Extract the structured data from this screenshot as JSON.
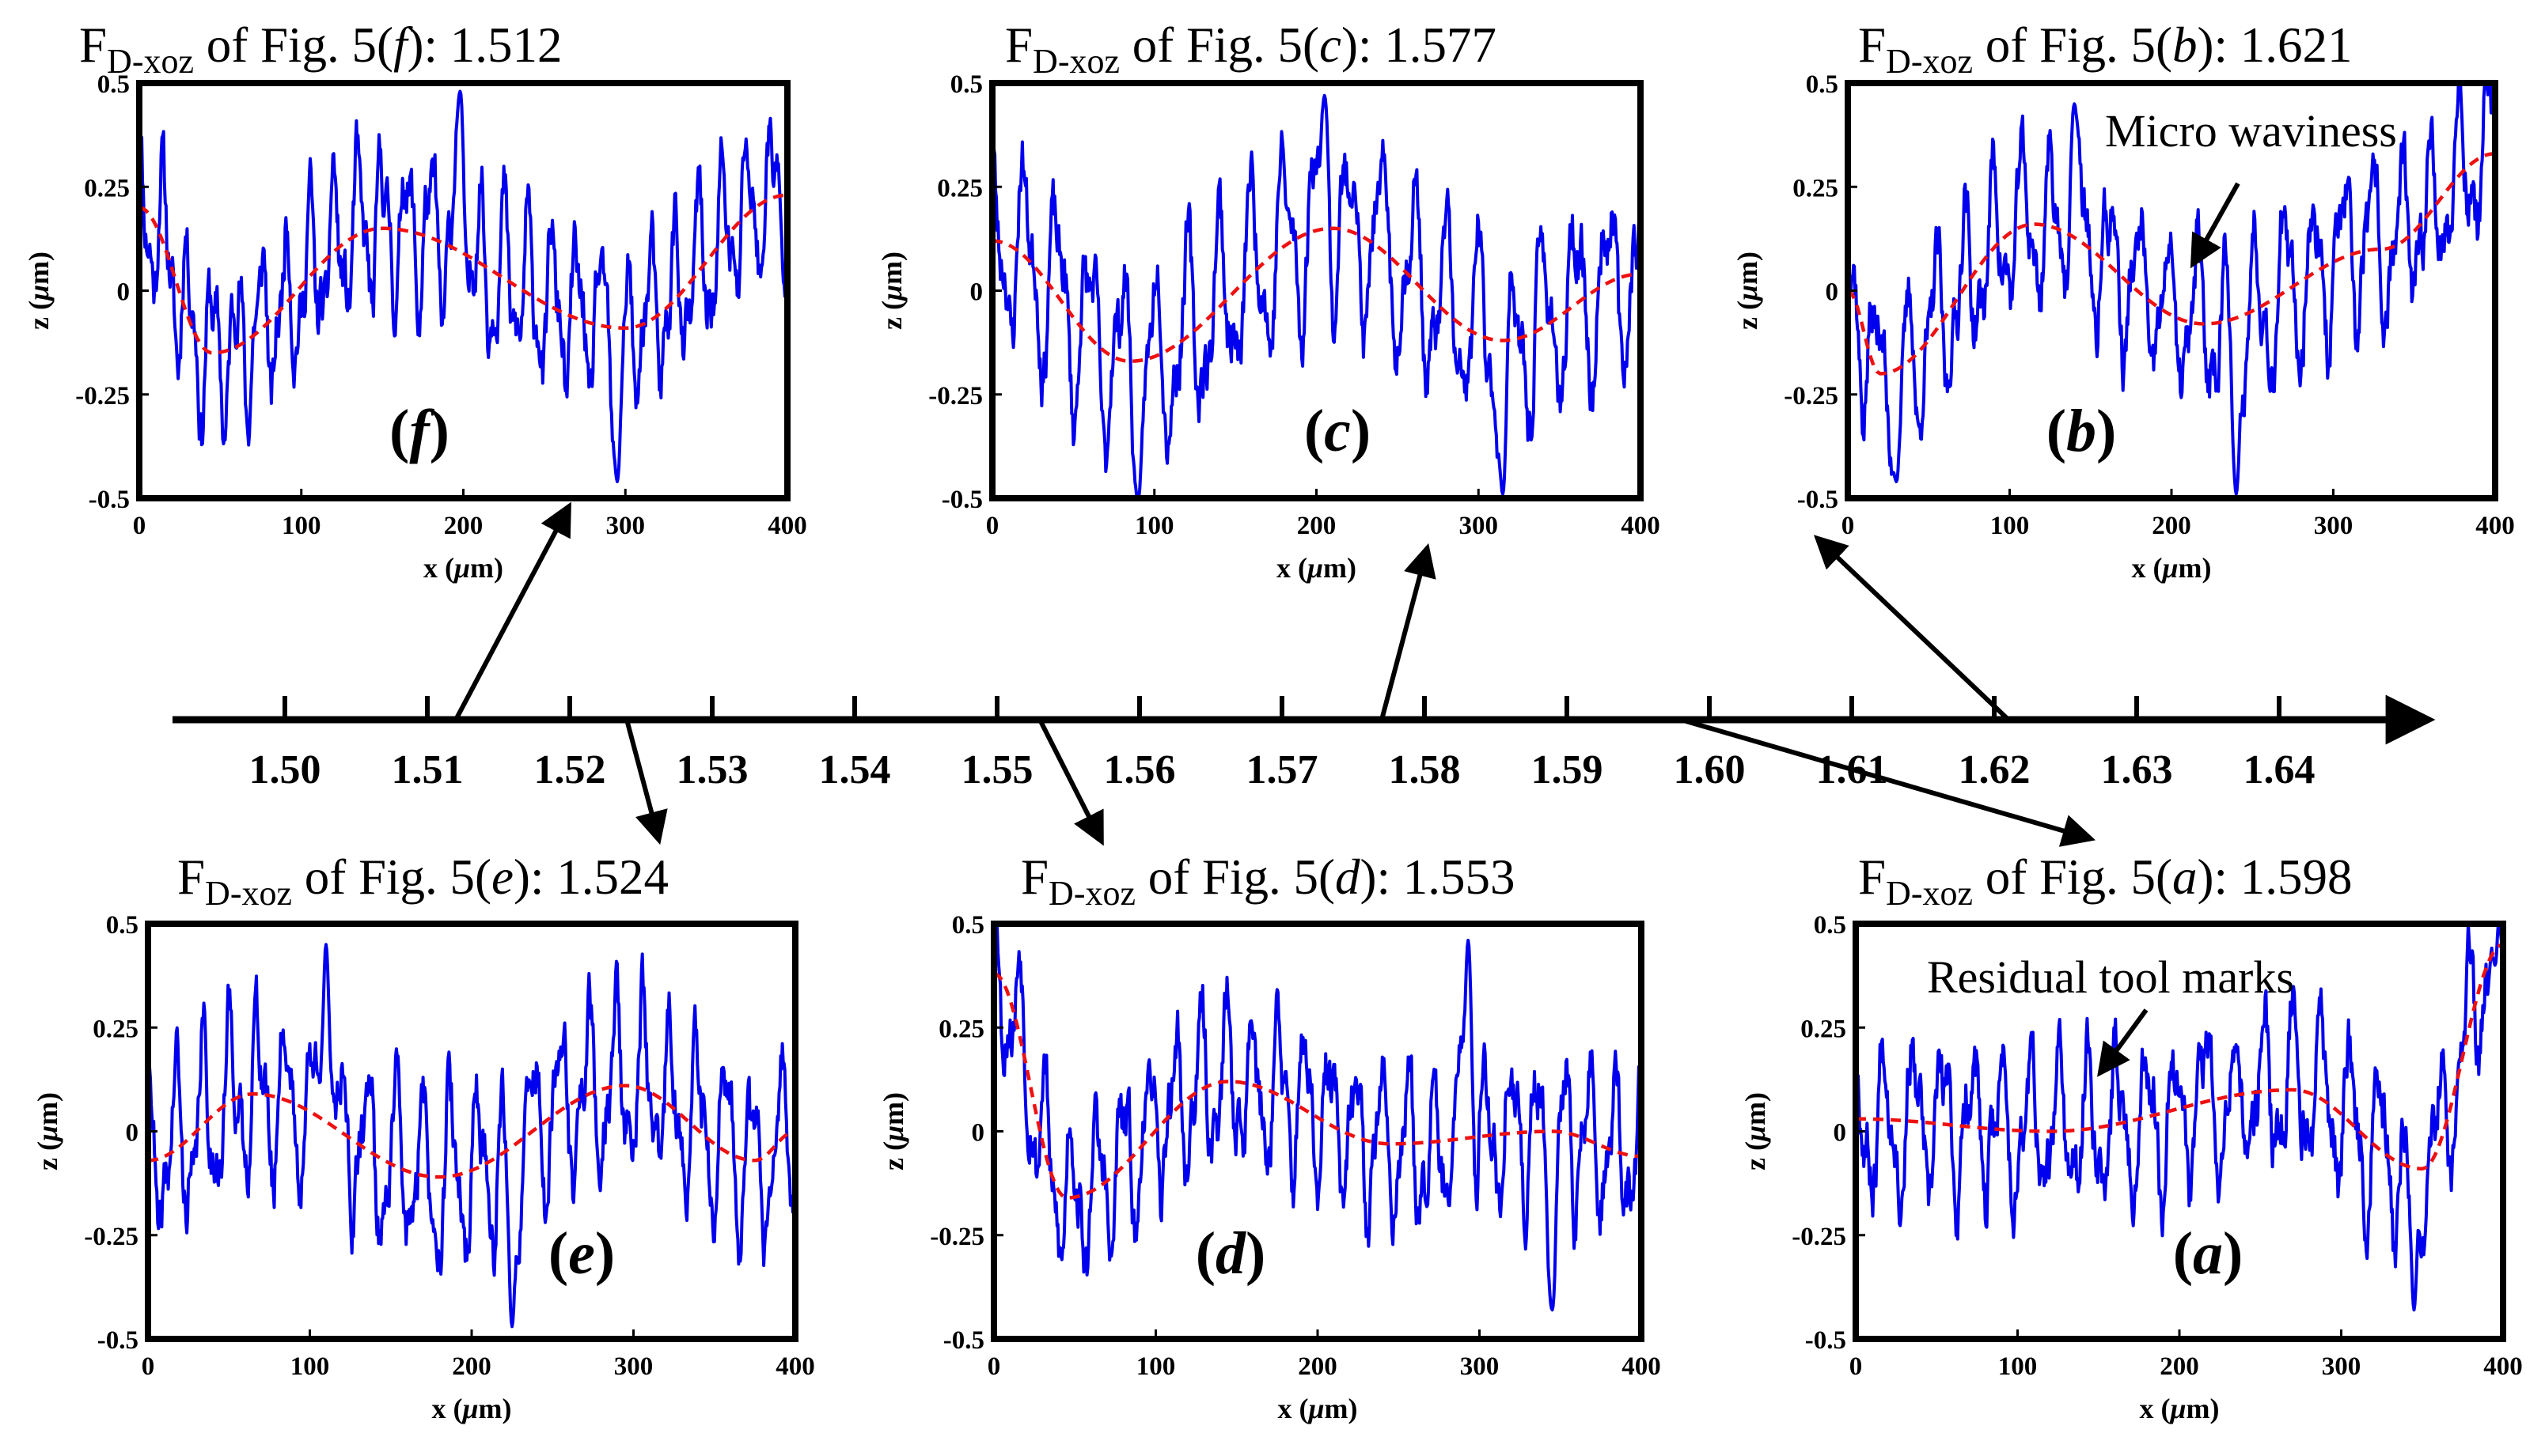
{
  "chart_data": {
    "type": "line",
    "number_line": {
      "labels": [
        "1.50",
        "1.51",
        "1.52",
        "1.53",
        "1.54",
        "1.55",
        "1.56",
        "1.57",
        "1.58",
        "1.59",
        "1.60",
        "1.61",
        "1.62",
        "1.63",
        "1.64"
      ]
    },
    "panels": [
      {
        "id": "f",
        "title_main": "F",
        "title_sub": "D-xoz",
        "title_mid": " of Fig. 5(",
        "title_letter": "f",
        "title_tail": "): 1.512",
        "fd": 1.512,
        "panel_label_open": "(",
        "panel_label_letter": "f",
        "panel_label_close": ")",
        "xlabel_pre": "x (",
        "xlabel_mu": "μ",
        "xlabel_post": "m)",
        "ylabel_pre": "z (",
        "ylabel_mu": "μ",
        "ylabel_post": "m)",
        "xticks": [
          "0",
          "100",
          "200",
          "300",
          "400"
        ],
        "yticks": [
          "0.5",
          "0.25",
          "0",
          "-0.25",
          "-0.5"
        ],
        "xlim": [
          0,
          400
        ],
        "ylim": [
          -0.5,
          0.5
        ],
        "trend": [
          [
            0,
            0.2
          ],
          [
            45,
            -0.15
          ],
          [
            150,
            0.15
          ],
          [
            300,
            -0.09
          ],
          [
            400,
            0.23
          ]
        ],
        "roughness": {
          "period": 15,
          "amp": 0.2,
          "seed": 11
        },
        "peaks": [
          [
            198,
            0.48
          ],
          [
            295,
            -0.46
          ]
        ],
        "annotation": null
      },
      {
        "id": "c",
        "title_main": "F",
        "title_sub": "D-xoz",
        "title_mid": " of Fig. 5(",
        "title_letter": "c",
        "title_tail": "): 1.577",
        "fd": 1.577,
        "panel_label_open": "(",
        "panel_label_letter": "c",
        "panel_label_close": ")",
        "xlabel_pre": "x (",
        "xlabel_mu": "μ",
        "xlabel_post": "m)",
        "ylabel_pre": "z (",
        "ylabel_mu": "μ",
        "ylabel_post": "m)",
        "xticks": [
          "0",
          "100",
          "200",
          "300",
          "400"
        ],
        "yticks": [
          "0.5",
          "0.25",
          "0",
          "-0.25",
          "-0.5"
        ],
        "xlim": [
          0,
          400
        ],
        "ylim": [
          -0.5,
          0.5
        ],
        "trend": [
          [
            0,
            0.12
          ],
          [
            85,
            -0.17
          ],
          [
            210,
            0.15
          ],
          [
            315,
            -0.12
          ],
          [
            400,
            0.04
          ]
        ],
        "roughness": {
          "period": 20,
          "amp": 0.24,
          "seed": 23
        },
        "peaks": [
          [
            205,
            0.47
          ],
          [
            90,
            -0.5
          ],
          [
            315,
            -0.49
          ]
        ],
        "annotation": null
      },
      {
        "id": "b",
        "title_main": "F",
        "title_sub": "D-xoz",
        "title_mid": " of Fig. 5(",
        "title_letter": "b",
        "title_tail": "): 1.621",
        "fd": 1.621,
        "panel_label_open": "(",
        "panel_label_letter": "b",
        "panel_label_close": ")",
        "xlabel_pre": "x (",
        "xlabel_mu": "μ",
        "xlabel_post": "m)",
        "ylabel_pre": "z (",
        "ylabel_mu": "μ",
        "ylabel_post": "m)",
        "xticks": [
          "0",
          "100",
          "200",
          "300",
          "400"
        ],
        "yticks": [
          "0.5",
          "0.25",
          "0",
          "-0.25",
          "-0.5"
        ],
        "xlim": [
          0,
          400
        ],
        "ylim": [
          -0.5,
          0.5
        ],
        "trend": [
          [
            0,
            0
          ],
          [
            20,
            -0.2
          ],
          [
            115,
            0.16
          ],
          [
            220,
            -0.08
          ],
          [
            330,
            0.1
          ],
          [
            400,
            0.33
          ]
        ],
        "roughness": {
          "period": 18,
          "amp": 0.2,
          "seed": 37
        },
        "peaks": [
          [
            140,
            0.45
          ],
          [
            30,
            -0.46
          ],
          [
            240,
            -0.49
          ]
        ],
        "annotation": {
          "text": "Micro waviness"
        }
      },
      {
        "id": "e",
        "title_main": "F",
        "title_sub": "D-xoz",
        "title_mid": " of Fig. 5(",
        "title_letter": "e",
        "title_tail": "): 1.524",
        "fd": 1.524,
        "panel_label_open": "(",
        "panel_label_letter": "e",
        "panel_label_close": ")",
        "xlabel_pre": "x (",
        "xlabel_mu": "μ",
        "xlabel_post": "m)",
        "ylabel_pre": "z (",
        "ylabel_mu": "μ",
        "ylabel_post": "m)",
        "xticks": [
          "0",
          "100",
          "200",
          "300",
          "400"
        ],
        "yticks": [
          "0.5",
          "0.25",
          "0",
          "-0.25",
          "-0.5"
        ],
        "xlim": [
          0,
          400
        ],
        "ylim": [
          -0.5,
          0.5
        ],
        "trend": [
          [
            0,
            -0.07
          ],
          [
            65,
            0.09
          ],
          [
            180,
            -0.11
          ],
          [
            295,
            0.11
          ],
          [
            375,
            -0.07
          ],
          [
            400,
            0
          ]
        ],
        "roughness": {
          "period": 17,
          "amp": 0.22,
          "seed": 41
        },
        "peaks": [
          [
            110,
            0.45
          ],
          [
            225,
            -0.47
          ]
        ],
        "annotation": null
      },
      {
        "id": "d",
        "title_main": "F",
        "title_sub": "D-xoz",
        "title_mid": " of Fig. 5(",
        "title_letter": "d",
        "title_tail": "): 1.553",
        "fd": 1.553,
        "panel_label_open": "(",
        "panel_label_letter": "d",
        "panel_label_close": ")",
        "xlabel_pre": "x (",
        "xlabel_mu": "μ",
        "xlabel_post": "m)",
        "ylabel_pre": "z (",
        "ylabel_mu": "μ",
        "ylabel_post": "m)",
        "xticks": [
          "0",
          "100",
          "200",
          "300",
          "400"
        ],
        "yticks": [
          "0.5",
          "0.25",
          "0",
          "-0.25",
          "-0.5"
        ],
        "xlim": [
          0,
          400
        ],
        "ylim": [
          -0.5,
          0.5
        ],
        "trend": [
          [
            0,
            0.38
          ],
          [
            45,
            -0.16
          ],
          [
            145,
            0.12
          ],
          [
            245,
            -0.03
          ],
          [
            345,
            0
          ],
          [
            400,
            -0.06
          ]
        ],
        "roughness": {
          "period": 16,
          "amp": 0.2,
          "seed": 53
        },
        "peaks": [
          [
            293,
            0.46
          ],
          [
            345,
            -0.43
          ]
        ],
        "annotation": null
      },
      {
        "id": "a",
        "title_main": "F",
        "title_sub": "D-xoz",
        "title_mid": " of Fig. 5(",
        "title_letter": "a",
        "title_tail": "): 1.598",
        "fd": 1.598,
        "panel_label_open": "(",
        "panel_label_letter": "a",
        "panel_label_close": ")",
        "xlabel_pre": "x (",
        "xlabel_mu": "μ",
        "xlabel_post": "m)",
        "ylabel_pre": "z (",
        "ylabel_mu": "μ",
        "ylabel_post": "m)",
        "xticks": [
          "0",
          "100",
          "200",
          "300",
          "400"
        ],
        "yticks": [
          "0.5",
          "0.25",
          "0",
          "-0.25",
          "-0.5"
        ],
        "xlim": [
          0,
          400
        ],
        "ylim": [
          -0.5,
          0.5
        ],
        "trend": [
          [
            0,
            0.03
          ],
          [
            120,
            0
          ],
          [
            270,
            0.1
          ],
          [
            350,
            -0.09
          ],
          [
            400,
            0.45
          ]
        ],
        "roughness": {
          "period": 18,
          "amp": 0.2,
          "seed": 67
        },
        "peaks": [
          [
            345,
            -0.43
          ],
          [
            395,
            0.4
          ]
        ],
        "annotation": {
          "text": "Residual tool marks"
        }
      }
    ],
    "series_colors": {
      "profile": "#0000ee",
      "trend": "#ee1111"
    }
  }
}
